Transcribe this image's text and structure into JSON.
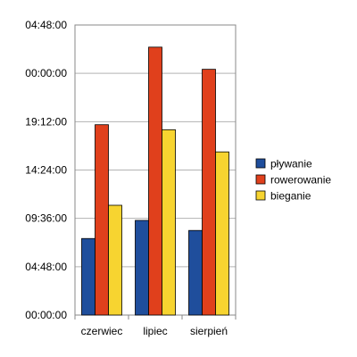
{
  "chart_data": {
    "type": "bar",
    "title": "",
    "xlabel": "",
    "ylabel": "",
    "categories": [
      "czerwiec",
      "lipiec",
      "sierpień"
    ],
    "y_unit": "hours",
    "ylim": [
      0,
      28.8
    ],
    "y_tick_step": 4.8,
    "y_ticks": [
      "00:00:00",
      "04:48:00",
      "09:36:00",
      "14:24:00",
      "19:12:00",
      "00:00:00",
      "04:48:00"
    ],
    "grid": true,
    "legend_position": "right",
    "series": [
      {
        "name": "pływanie",
        "color": "#1f4e9c",
        "values": [
          7.6,
          9.4,
          8.4
        ]
      },
      {
        "name": "rowerowanie",
        "color": "#e0401c",
        "values": [
          18.9,
          26.6,
          24.4
        ]
      },
      {
        "name": "bieganie",
        "color": "#f7d430",
        "values": [
          10.9,
          18.4,
          16.2
        ]
      }
    ]
  }
}
